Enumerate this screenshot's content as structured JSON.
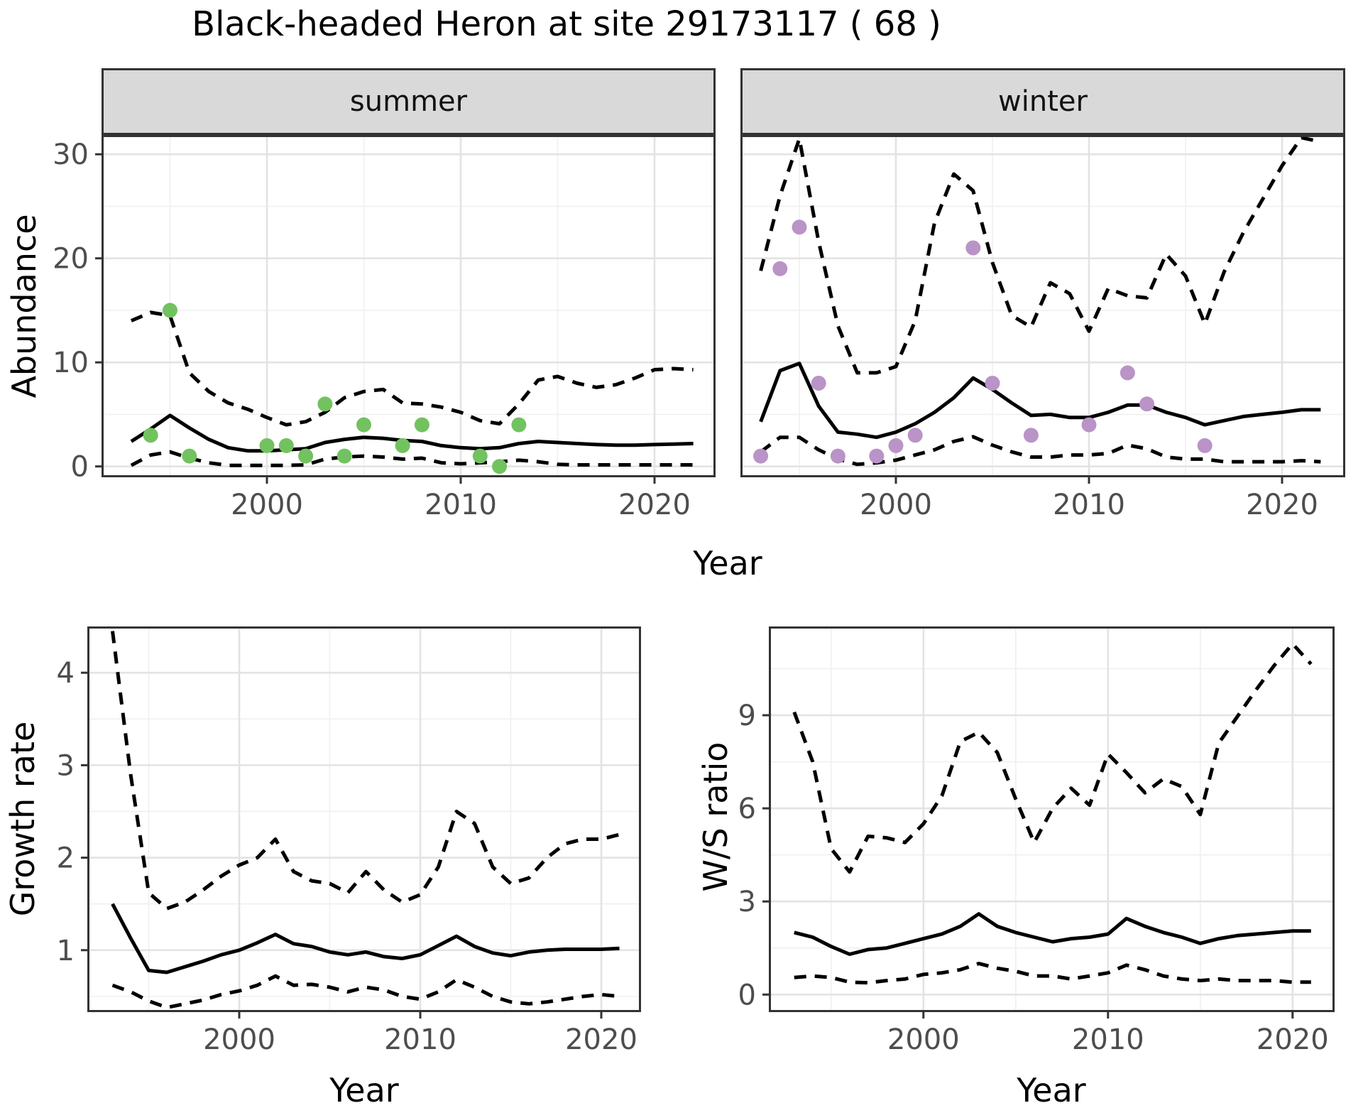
{
  "title": "Black-headed Heron at site 29173117 ( 68 )",
  "axis_titles": {
    "x": "Year",
    "abundance": "Abundance",
    "growth": "Growth rate",
    "ws": "W/S ratio"
  },
  "colors": {
    "summer_points": "#72C25F",
    "winter_points": "#BA93C7",
    "line": "#000000",
    "strip_background": "#D9D9D9",
    "tick_label": "#4D4D4D",
    "panel_border": "#333333"
  },
  "chart_data": [
    {
      "id": "abundance-summer",
      "type": "line",
      "title": "summer",
      "xlabel": "Year",
      "ylabel": "Abundance",
      "x_ticks": [
        2000,
        2010,
        2020
      ],
      "y_ticks": [
        0,
        10,
        20,
        30
      ],
      "ylim": [
        0,
        31.9
      ],
      "legend": "none",
      "years": [
        1993,
        1994,
        1995,
        1996,
        1997,
        1998,
        1999,
        2000,
        2001,
        2002,
        2003,
        2004,
        2005,
        2006,
        2007,
        2008,
        2009,
        2010,
        2011,
        2012,
        2013,
        2014,
        2015,
        2016,
        2017,
        2018,
        2019,
        2020,
        2021,
        2022
      ],
      "series": [
        {
          "name": "median",
          "style": "solid",
          "values": [
            2.4,
            3.6,
            4.9,
            3.7,
            2.6,
            1.8,
            1.5,
            1.5,
            1.6,
            1.7,
            2.3,
            2.6,
            2.8,
            2.7,
            2.5,
            2.4,
            2.0,
            1.8,
            1.7,
            1.8,
            2.2,
            2.4,
            2.3,
            2.2,
            2.1,
            2.05,
            2.05,
            2.1,
            2.15,
            2.2
          ]
        },
        {
          "name": "upper_ci",
          "style": "dashed",
          "values": [
            14.0,
            14.8,
            14.5,
            9.0,
            7.2,
            6.1,
            5.5,
            4.7,
            4.0,
            4.3,
            5.2,
            6.6,
            7.2,
            7.4,
            6.1,
            6.0,
            5.7,
            5.2,
            4.4,
            4.1,
            6.0,
            8.3,
            8.65,
            8.0,
            7.6,
            7.85,
            8.5,
            9.3,
            9.4,
            9.3
          ]
        },
        {
          "name": "lower_ci",
          "style": "dashed",
          "values": [
            0.1,
            1.1,
            1.4,
            0.8,
            0.35,
            0.1,
            0.1,
            0.1,
            0.1,
            0.15,
            0.7,
            0.9,
            1.0,
            0.9,
            0.7,
            0.8,
            0.35,
            0.25,
            0.35,
            0.45,
            0.6,
            0.45,
            0.2,
            0.15,
            0.15,
            0.15,
            0.15,
            0.15,
            0.15,
            0.15
          ]
        }
      ],
      "points": [
        [
          1994,
          3
        ],
        [
          1995,
          15
        ],
        [
          1996,
          1
        ],
        [
          2000,
          2
        ],
        [
          2001,
          2
        ],
        [
          2002,
          1
        ],
        [
          2003,
          6
        ],
        [
          2004,
          1
        ],
        [
          2005,
          4
        ],
        [
          2007,
          2
        ],
        [
          2008,
          4
        ],
        [
          2011,
          1
        ],
        [
          2012,
          0
        ],
        [
          2013,
          4
        ]
      ],
      "point_color": "#72C25F"
    },
    {
      "id": "abundance-winter",
      "type": "line",
      "title": "winter",
      "xlabel": "Year",
      "ylabel": "Abundance",
      "x_ticks": [
        2000,
        2010,
        2020
      ],
      "y_ticks": [
        0,
        10,
        20,
        30
      ],
      "ylim": [
        0,
        31.9
      ],
      "legend": "none",
      "years": [
        1993,
        1994,
        1995,
        1996,
        1997,
        1998,
        1999,
        2000,
        2001,
        2002,
        2003,
        2004,
        2005,
        2006,
        2007,
        2008,
        2009,
        2010,
        2011,
        2012,
        2013,
        2014,
        2015,
        2016,
        2017,
        2018,
        2019,
        2020,
        2021,
        2022
      ],
      "series": [
        {
          "name": "median",
          "style": "solid",
          "values": [
            4.3,
            9.2,
            9.9,
            5.8,
            3.3,
            3.1,
            2.8,
            3.3,
            4.1,
            5.2,
            6.6,
            8.5,
            7.4,
            6.1,
            4.9,
            5.0,
            4.7,
            4.7,
            5.2,
            5.9,
            5.9,
            5.2,
            4.7,
            4.0,
            4.4,
            4.8,
            5.0,
            5.2,
            5.45,
            5.45
          ]
        },
        {
          "name": "upper_ci",
          "style": "dashed",
          "values": [
            18.8,
            26.0,
            31.5,
            21.6,
            13.5,
            9.0,
            9.0,
            9.6,
            14.0,
            23.4,
            28.1,
            26.5,
            19.6,
            14.5,
            13.4,
            17.65,
            16.6,
            13.0,
            17.1,
            16.4,
            16.2,
            20.4,
            18.3,
            13.7,
            18.7,
            22.5,
            25.7,
            28.9,
            31.6,
            31.2
          ]
        },
        {
          "name": "lower_ci",
          "style": "dashed",
          "values": [
            1.4,
            2.8,
            2.8,
            1.6,
            0.7,
            0.2,
            0.35,
            0.6,
            1.1,
            1.6,
            2.4,
            2.85,
            2.05,
            1.4,
            0.9,
            0.9,
            1.1,
            1.1,
            1.25,
            2.05,
            1.7,
            0.9,
            0.7,
            0.7,
            0.45,
            0.45,
            0.45,
            0.45,
            0.55,
            0.45
          ]
        }
      ],
      "points": [
        [
          1993,
          1
        ],
        [
          1994,
          19
        ],
        [
          1995,
          23
        ],
        [
          1996,
          8
        ],
        [
          1997,
          1
        ],
        [
          1999,
          1
        ],
        [
          2000,
          2
        ],
        [
          2001,
          3
        ],
        [
          2004,
          21
        ],
        [
          2005,
          8
        ],
        [
          2007,
          3
        ],
        [
          2010,
          4
        ],
        [
          2012,
          9
        ],
        [
          2013,
          6
        ],
        [
          2016,
          2
        ]
      ],
      "point_color": "#BA93C7"
    },
    {
      "id": "growth-rate",
      "type": "line",
      "title": "",
      "xlabel": "Year",
      "ylabel": "Growth rate",
      "x_ticks": [
        2000,
        2010,
        2020
      ],
      "y_ticks": [
        1,
        2,
        3,
        4
      ],
      "ylim": [
        0.33,
        4.5
      ],
      "legend": "none",
      "years": [
        1993,
        1994,
        1995,
        1996,
        1997,
        1998,
        1999,
        2000,
        2001,
        2002,
        2003,
        2004,
        2005,
        2006,
        2007,
        2008,
        2009,
        2010,
        2011,
        2012,
        2013,
        2014,
        2015,
        2016,
        2017,
        2018,
        2019,
        2020,
        2021
      ],
      "series": [
        {
          "name": "median",
          "style": "solid",
          "values": [
            1.5,
            1.13,
            0.78,
            0.76,
            0.82,
            0.88,
            0.95,
            1.0,
            1.08,
            1.17,
            1.07,
            1.04,
            0.98,
            0.95,
            0.98,
            0.93,
            0.91,
            0.95,
            1.05,
            1.15,
            1.04,
            0.97,
            0.94,
            0.98,
            1.0,
            1.01,
            1.01,
            1.01,
            1.02
          ]
        },
        {
          "name": "upper_ci",
          "style": "dashed",
          "values": [
            4.45,
            2.9,
            1.62,
            1.45,
            1.52,
            1.65,
            1.8,
            1.92,
            2.0,
            2.2,
            1.85,
            1.75,
            1.72,
            1.62,
            1.85,
            1.65,
            1.52,
            1.6,
            1.9,
            2.5,
            2.37,
            1.9,
            1.72,
            1.78,
            2.0,
            2.15,
            2.2,
            2.2,
            2.25
          ]
        },
        {
          "name": "lower_ci",
          "style": "dashed",
          "values": [
            0.62,
            0.55,
            0.45,
            0.38,
            0.42,
            0.46,
            0.52,
            0.56,
            0.62,
            0.72,
            0.62,
            0.63,
            0.6,
            0.55,
            0.6,
            0.57,
            0.5,
            0.47,
            0.55,
            0.68,
            0.6,
            0.5,
            0.44,
            0.42,
            0.44,
            0.47,
            0.5,
            0.52,
            0.5
          ]
        }
      ],
      "points": [],
      "point_color": "#000000"
    },
    {
      "id": "ws-ratio",
      "type": "line",
      "title": "",
      "xlabel": "Year",
      "ylabel": "W/S ratio",
      "x_ticks": [
        2000,
        2010,
        2020
      ],
      "y_ticks": [
        0,
        3,
        6,
        9
      ],
      "ylim": [
        0,
        11.3
      ],
      "legend": "none",
      "years": [
        1993,
        1994,
        1995,
        1996,
        1997,
        1998,
        1999,
        2000,
        2001,
        2002,
        2003,
        2004,
        2005,
        2006,
        2007,
        2008,
        2009,
        2010,
        2011,
        2012,
        2013,
        2014,
        2015,
        2016,
        2017,
        2018,
        2019,
        2020,
        2021
      ],
      "series": [
        {
          "name": "median",
          "style": "solid",
          "values": [
            2.0,
            1.85,
            1.55,
            1.3,
            1.45,
            1.5,
            1.65,
            1.8,
            1.95,
            2.2,
            2.6,
            2.2,
            2.0,
            1.85,
            1.7,
            1.8,
            1.85,
            1.95,
            2.45,
            2.2,
            2.0,
            1.85,
            1.65,
            1.8,
            1.9,
            1.95,
            2.0,
            2.05,
            2.05
          ]
        },
        {
          "name": "upper_ci",
          "style": "dashed",
          "values": [
            9.1,
            7.5,
            4.7,
            3.95,
            5.1,
            5.05,
            4.9,
            5.5,
            6.4,
            8.15,
            8.45,
            7.8,
            6.3,
            4.9,
            6.0,
            6.65,
            6.1,
            7.75,
            7.15,
            6.5,
            6.95,
            6.7,
            5.8,
            8.1,
            8.95,
            9.8,
            10.6,
            11.3,
            10.65
          ]
        },
        {
          "name": "lower_ci",
          "style": "dashed",
          "values": [
            0.55,
            0.6,
            0.55,
            0.4,
            0.38,
            0.45,
            0.5,
            0.65,
            0.7,
            0.8,
            1.0,
            0.85,
            0.75,
            0.6,
            0.6,
            0.5,
            0.6,
            0.7,
            0.95,
            0.8,
            0.6,
            0.5,
            0.45,
            0.5,
            0.45,
            0.45,
            0.45,
            0.4,
            0.4
          ]
        }
      ],
      "points": [],
      "point_color": "#000000"
    }
  ]
}
